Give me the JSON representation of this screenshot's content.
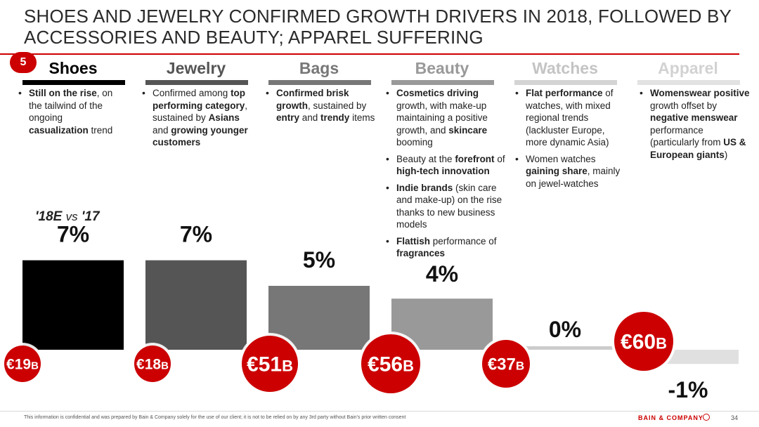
{
  "title": "SHOES AND JEWELRY CONFIRMED GROWTH DRIVERS IN 2018, FOLLOWED BY ACCESSORIES AND BEAUTY; APPAREL SUFFERING",
  "section_number": "5",
  "compare_label": {
    "left": "'18E",
    "vs": "vs",
    "right": "'17"
  },
  "categories": [
    {
      "name": "Shoes",
      "header_color": "#000000",
      "underline_color": "#000000",
      "bullets": [
        [
          {
            "t": "Still on the rise",
            "b": true
          },
          {
            "t": ", on the tailwind of the ongoing ",
            "b": false
          },
          {
            "t": "casualization",
            "b": true
          },
          {
            "t": " trend",
            "b": false
          }
        ]
      ]
    },
    {
      "name": "Jewelry",
      "header_color": "#555555",
      "underline_color": "#555555",
      "bullets": [
        [
          {
            "t": "Confirmed among ",
            "b": false
          },
          {
            "t": "top performing category",
            "b": true
          },
          {
            "t": ", sustained by ",
            "b": false
          },
          {
            "t": "Asians",
            "b": true
          },
          {
            "t": " and ",
            "b": false
          },
          {
            "t": "growing younger customers",
            "b": true
          }
        ]
      ]
    },
    {
      "name": "Bags",
      "header_color": "#777777",
      "underline_color": "#777777",
      "bullets": [
        [
          {
            "t": "Confirmed brisk growth",
            "b": true
          },
          {
            "t": ", sustained by ",
            "b": false
          },
          {
            "t": "entry",
            "b": true
          },
          {
            "t": " and ",
            "b": false
          },
          {
            "t": "trendy",
            "b": true
          },
          {
            "t": " items",
            "b": false
          }
        ]
      ]
    },
    {
      "name": "Beauty",
      "header_color": "#999999",
      "underline_color": "#999999",
      "bullets": [
        [
          {
            "t": "Cosmetics driving",
            "b": true
          },
          {
            "t": " growth, with make-up maintaining a positive growth, and ",
            "b": false
          },
          {
            "t": "skincare",
            "b": true
          },
          {
            "t": " booming",
            "b": false
          }
        ],
        [
          {
            "t": "Beauty at the ",
            "b": false
          },
          {
            "t": "forefront",
            "b": true
          },
          {
            "t": " of ",
            "b": false
          },
          {
            "t": "high-tech innovation",
            "b": true
          }
        ],
        [
          {
            "t": "Indie brands",
            "b": true
          },
          {
            "t": " (skin care and make-up) on the rise thanks to new business models",
            "b": false
          }
        ],
        [
          {
            "t": "Flattish",
            "b": true
          },
          {
            "t": " performance of ",
            "b": false
          },
          {
            "t": "fragrances",
            "b": true
          }
        ]
      ]
    },
    {
      "name": "Watches",
      "header_color": "#c4c4c4",
      "underline_color": "#d4d4d4",
      "bullets": [
        [
          {
            "t": "Flat performance",
            "b": true
          },
          {
            "t": " of watches, with mixed regional trends (lackluster Europe, more dynamic Asia)",
            "b": false
          }
        ],
        [
          {
            "t": "Women watches ",
            "b": false
          },
          {
            "t": "gaining share",
            "b": true
          },
          {
            "t": ", mainly on jewel-watches",
            "b": false
          }
        ]
      ]
    },
    {
      "name": "Apparel",
      "header_color": "#d2d2d2",
      "underline_color": "#e2e2e2",
      "bullets": [
        [
          {
            "t": "Womenswear positive",
            "b": true
          },
          {
            "t": " growth offset by ",
            "b": false
          },
          {
            "t": "negative menswear",
            "b": true
          },
          {
            "t": " performance (particularly from ",
            "b": false
          },
          {
            "t": "US & European giants",
            "b": true
          },
          {
            "t": ")",
            "b": false
          }
        ]
      ]
    }
  ],
  "chart_data": {
    "type": "bar",
    "categories": [
      "Shoes",
      "Jewelry",
      "Bags",
      "Beauty",
      "Watches",
      "Apparel"
    ],
    "values": [
      7,
      7,
      5,
      4,
      0,
      -1
    ],
    "value_labels": [
      "7%",
      "7%",
      "5%",
      "4%",
      "0%",
      "-1%"
    ],
    "bar_colors": [
      "#000000",
      "#555555",
      "#777777",
      "#999999",
      "#cccccc",
      "#e0e0e0"
    ],
    "market_size_labels": [
      {
        "value": "€19",
        "unit": "B"
      },
      {
        "value": "€18",
        "unit": "B"
      },
      {
        "value": "€51",
        "unit": "B"
      },
      {
        "value": "€56",
        "unit": "B"
      },
      {
        "value": "€37",
        "unit": "B"
      },
      {
        "value": "€60",
        "unit": "B"
      }
    ],
    "market_size_values": [
      19,
      18,
      51,
      56,
      37,
      60
    ],
    "bubble_color": "#cc0000",
    "ylim": [
      -1,
      7
    ],
    "grid": false
  },
  "footer": {
    "note": "This information is confidential and was prepared by Bain & Company solely for the use of our client; it is not to be relied on by any 3rd party without Bain's prior written consent",
    "brand": "BAIN & COMPANY",
    "page": "34"
  }
}
